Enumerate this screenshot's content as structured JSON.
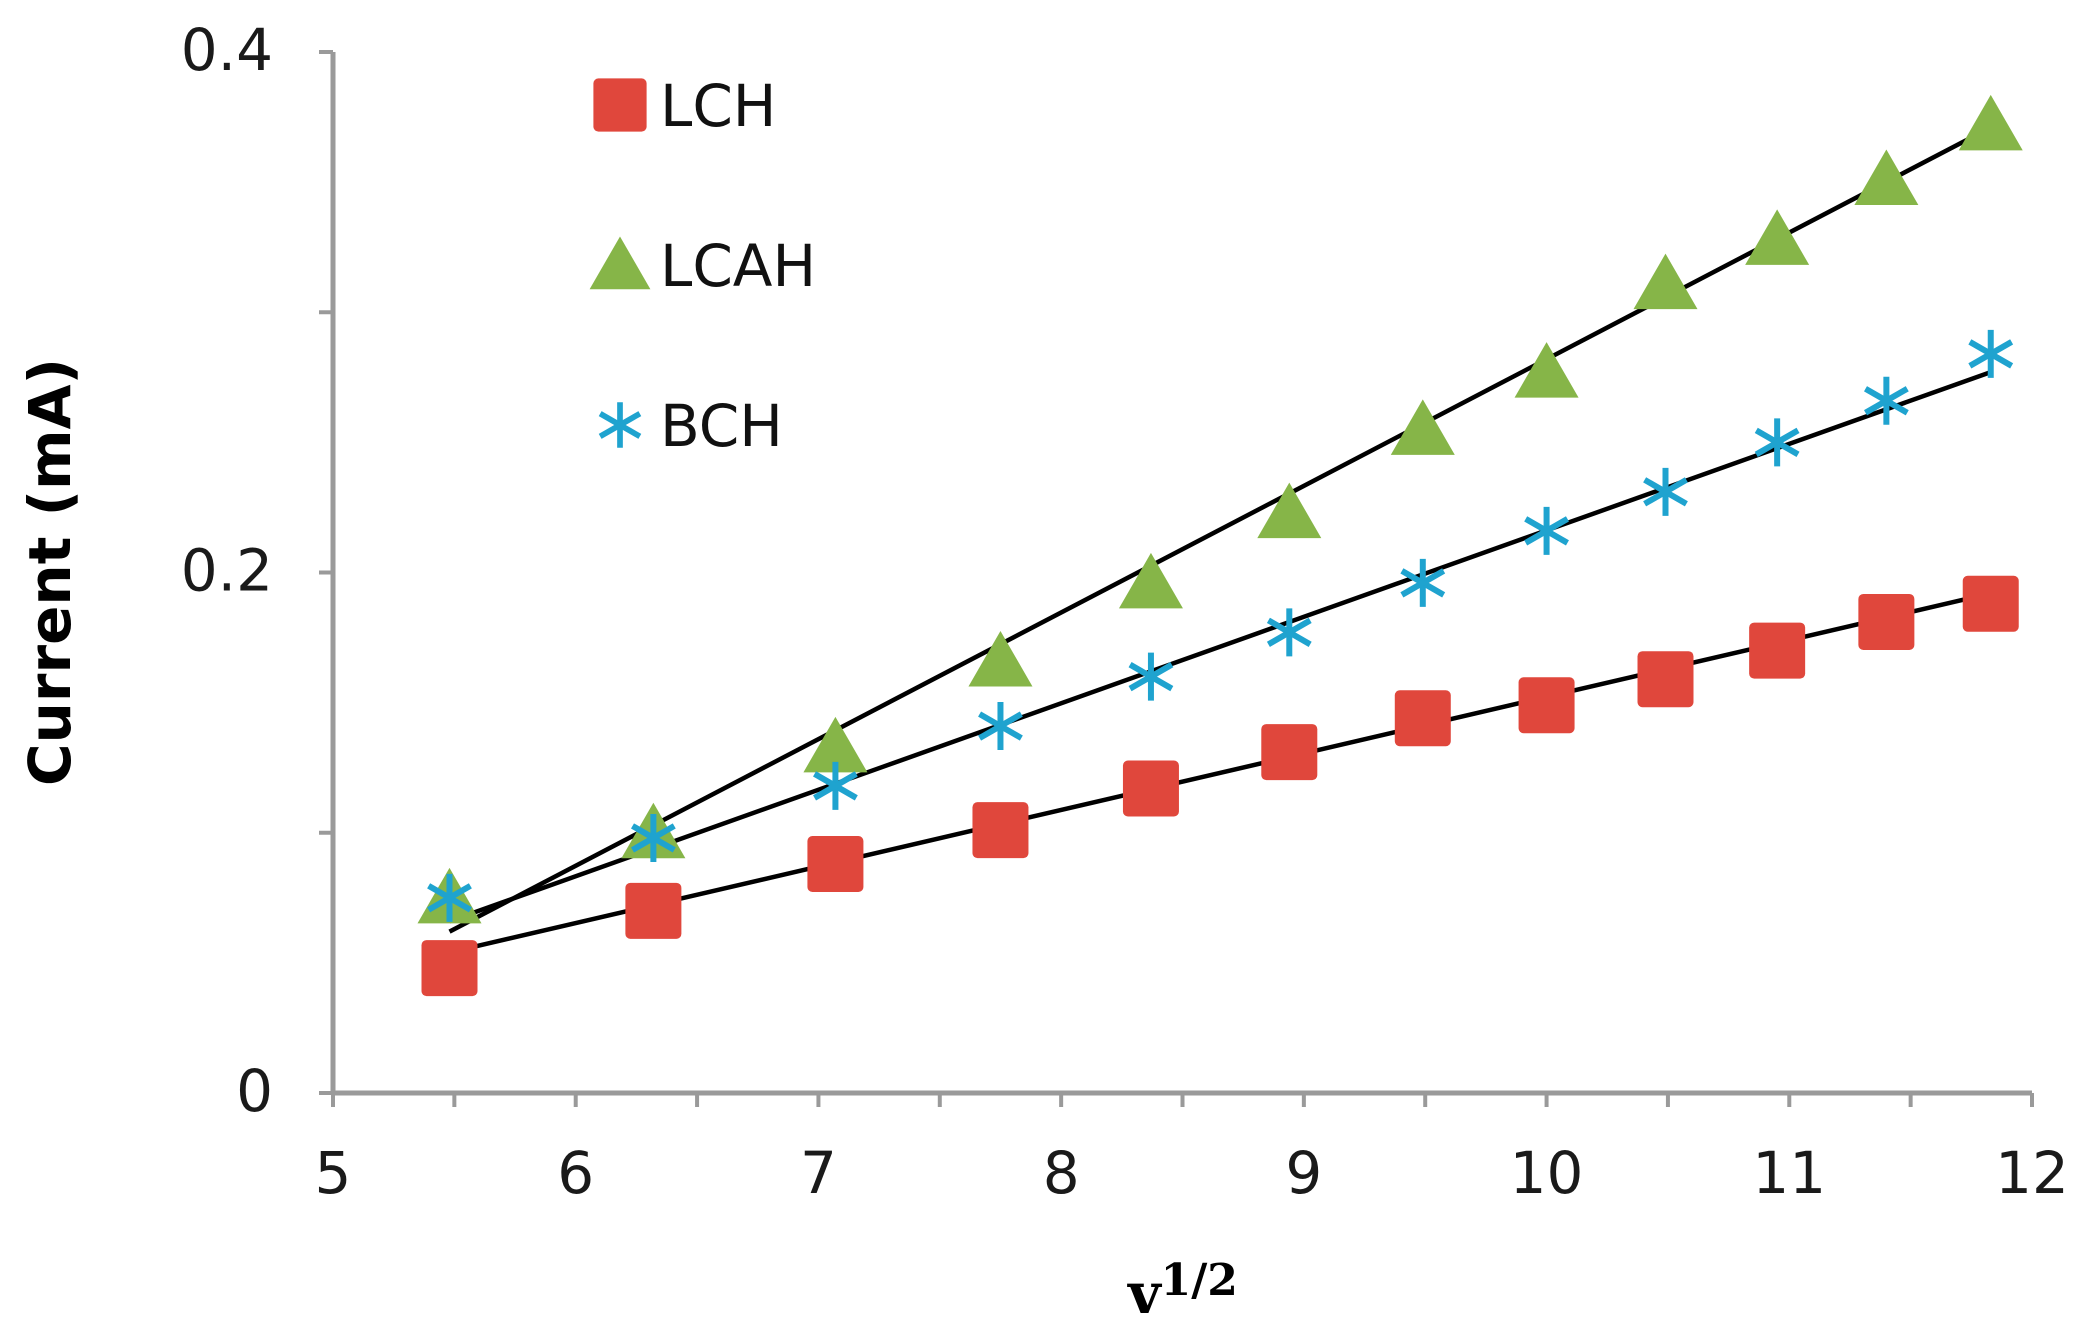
{
  "chart_data": {
    "type": "scatter",
    "title": "",
    "xlabel": "v",
    "xlabel_sup": "1/2",
    "ylabel": "Current (mA)",
    "xlim": [
      5,
      12
    ],
    "ylim": [
      0,
      0.4
    ],
    "x_ticks": [
      "5",
      "6",
      "7",
      "8",
      "9",
      "10",
      "11",
      "12"
    ],
    "y_ticks": [
      "0",
      "0.2",
      "0.4"
    ],
    "x_tick_values": [
      5,
      6,
      7,
      8,
      9,
      10,
      11,
      12
    ],
    "y_tick_values": [
      0,
      0.2,
      0.4
    ],
    "y_minor_ticks": [
      0.1,
      0.3
    ],
    "legend_position": "top-left",
    "x": [
      5.48,
      6.32,
      7.07,
      7.75,
      8.37,
      8.94,
      9.49,
      10.0,
      10.49,
      10.95,
      11.4,
      11.83
    ],
    "series": [
      {
        "name": "LCH",
        "marker": "square",
        "color": "#e0473c",
        "values": [
          0.048,
          0.07,
          0.088,
          0.101,
          0.117,
          0.131,
          0.144,
          0.149,
          0.159,
          0.17,
          0.181,
          0.188
        ],
        "fit": [
          0.054,
          0.192
        ]
      },
      {
        "name": "LCAH",
        "marker": "triangle",
        "color": "#86b548",
        "values": [
          0.075,
          0.1,
          0.133,
          0.166,
          0.196,
          0.223,
          0.255,
          0.277,
          0.311,
          0.328,
          0.351,
          0.372
        ],
        "fit": [
          0.062,
          0.371
        ]
      },
      {
        "name": "BCH",
        "marker": "asterisk",
        "color": "#1fa3cf",
        "values": [
          0.075,
          0.098,
          0.118,
          0.141,
          0.16,
          0.177,
          0.196,
          0.216,
          0.231,
          0.25,
          0.266,
          0.284
        ],
        "fit": [
          0.066,
          0.277
        ]
      }
    ]
  }
}
